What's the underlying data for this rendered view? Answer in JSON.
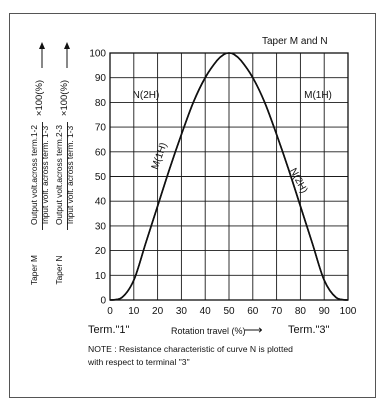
{
  "chart_data": {
    "type": "line",
    "title": "Taper M and N",
    "xlabel": "Rotation travel (%)",
    "xlim": [
      0,
      100
    ],
    "ylim": [
      0,
      100
    ],
    "x_ticks": [
      0,
      10,
      20,
      30,
      40,
      50,
      60,
      70,
      80,
      90,
      100
    ],
    "y_ticks": [
      0,
      10,
      20,
      30,
      40,
      50,
      60,
      70,
      80,
      90,
      100
    ],
    "grid": true,
    "series": [
      {
        "name": "M(1H)",
        "label_upper": "M(1H)",
        "label_mid": "M(1H)",
        "x": [
          0,
          5,
          10,
          15,
          20,
          25,
          30,
          35,
          40,
          45,
          48,
          50,
          52,
          55,
          60,
          65,
          70,
          75,
          80,
          85,
          90,
          95,
          100
        ],
        "y": [
          0,
          1,
          8,
          23,
          38,
          53,
          67,
          80,
          90,
          97,
          99.5,
          100,
          99.5,
          97,
          90,
          80,
          67,
          53,
          38,
          23,
          8,
          1,
          0
        ]
      },
      {
        "name": "N(2H)",
        "label_upper": "N(2H)",
        "label_mid": "N(2H)",
        "x": [
          0,
          5,
          10,
          15,
          20,
          25,
          30,
          35,
          40,
          45,
          48,
          50,
          52,
          55,
          60,
          65,
          70,
          75,
          80,
          85,
          90,
          95,
          100
        ],
        "y": [
          0,
          1,
          8,
          23,
          38,
          53,
          67,
          80,
          90,
          97,
          99.5,
          100,
          99.5,
          97,
          90,
          80,
          67,
          53,
          38,
          23,
          8,
          1,
          0
        ]
      }
    ],
    "ylabel_taper_m": "Taper M",
    "ylabel_taper_n": "Taper N",
    "ylabel_m_top": "Output volt.across term.1-2",
    "ylabel_m_bottom": "Input volt. across term. 1-3",
    "ylabel_n_top": "Output volt.across term.2-3",
    "ylabel_n_bottom": "Input volt. across term. 1-3",
    "ylabel_factor": "×100(%)",
    "term_left": "Term.\"1\"",
    "term_right": "Term.\"3\"",
    "arrow_glyph": "⟶",
    "note_line1": "NOTE : Resistance characteristic of curve N is plotted",
    "note_line2": "with respect to terminal \"3\""
  }
}
